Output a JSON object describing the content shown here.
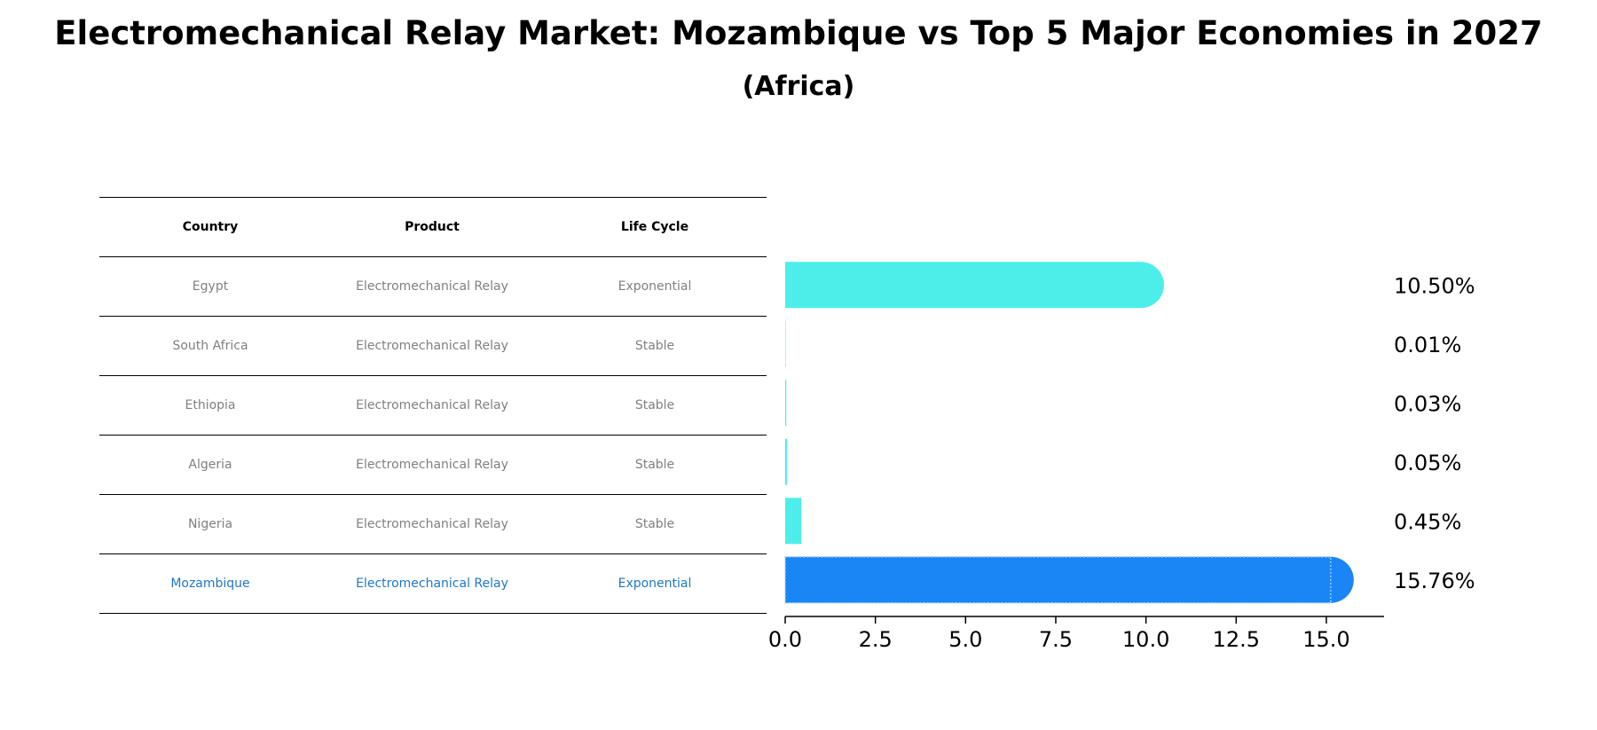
{
  "chart_data": {
    "type": "bar",
    "orientation": "horizontal",
    "title": "Electromechanical Relay Market: Mozambique vs Top 5 Major Economies in 2027",
    "subtitle": "(Africa)",
    "table": {
      "headers": [
        "Country",
        "Product",
        "Life Cycle"
      ],
      "rows": [
        {
          "country": "Egypt",
          "product": "Electromechanical Relay",
          "life_cycle": "Exponential"
        },
        {
          "country": "South Africa",
          "product": "Electromechanical Relay",
          "life_cycle": "Stable"
        },
        {
          "country": "Ethiopia",
          "product": "Electromechanical Relay",
          "life_cycle": "Stable"
        },
        {
          "country": "Algeria",
          "product": "Electromechanical Relay",
          "life_cycle": "Stable"
        },
        {
          "country": "Nigeria",
          "product": "Electromechanical Relay",
          "life_cycle": "Stable"
        },
        {
          "country": "Mozambique",
          "product": "Electromechanical Relay",
          "life_cycle": "Exponential"
        }
      ]
    },
    "categories": [
      "Egypt",
      "South Africa",
      "Ethiopia",
      "Algeria",
      "Nigeria",
      "Mozambique"
    ],
    "values": [
      10.5,
      0.01,
      0.03,
      0.05,
      0.45,
      15.76
    ],
    "value_labels": [
      "10.50%",
      "0.01%",
      "0.03%",
      "0.05%",
      "0.45%",
      "15.76%"
    ],
    "highlight": "Mozambique",
    "xlim": [
      0,
      16.6
    ],
    "xticks": [
      0,
      2.5,
      5,
      7.5,
      10,
      12.5,
      15
    ],
    "xtick_labels": [
      "0.0",
      "2.5",
      "5.0",
      "7.5",
      "10.0",
      "12.5",
      "15.0"
    ],
    "colors": {
      "default": "#4deeea",
      "highlight": "#1a86f5",
      "highlight_text": "#1f77c4"
    },
    "grid": false,
    "legend": "none"
  }
}
